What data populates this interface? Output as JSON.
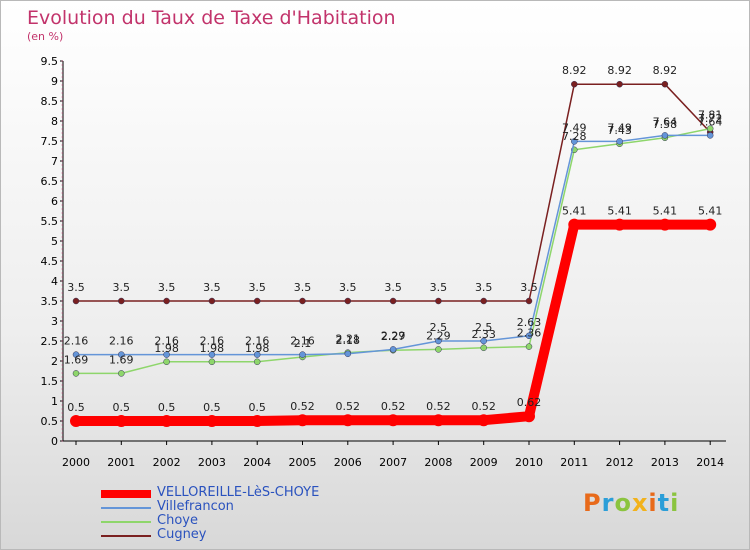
{
  "title": "Evolution du Taux de Taxe d'Habitation",
  "subtitle": "(en %)",
  "logo": {
    "text": "Proxiti",
    "colors": [
      "#e86a1a",
      "#2b9ed8",
      "#8bc43f",
      "#f2b21c"
    ]
  },
  "chart_data": {
    "type": "line",
    "title": "Evolution du Taux de Taxe d'Habitation",
    "ylabel": "(en %)",
    "x": [
      "2000",
      "2001",
      "2002",
      "2003",
      "2004",
      "2005",
      "2006",
      "2007",
      "2008",
      "2009",
      "2010",
      "2011",
      "2012",
      "2013",
      "2014"
    ],
    "y_ticks": [
      "0",
      "0.5",
      "1",
      "1.5",
      "2",
      "2.5",
      "3",
      "3.5",
      "4",
      "4.5",
      "5",
      "5.5",
      "6",
      "6.5",
      "7",
      "7.5",
      "8",
      "8.5",
      "9",
      "9.5"
    ],
    "ylim": [
      0,
      9.5
    ],
    "grid": false,
    "legend_position": "bottom-left",
    "series": [
      {
        "name": "VELLOREILLE-LèS-CHOYE",
        "color": "#ff0000",
        "values": [
          0.5,
          0.5,
          0.5,
          0.5,
          0.5,
          0.52,
          0.52,
          0.52,
          0.52,
          0.52,
          0.62,
          5.41,
          5.41,
          5.41,
          5.41
        ],
        "labels": [
          "0.5",
          "0.5",
          "0.5",
          "0.5",
          "0.5",
          "0.52",
          "0.52",
          "0.52",
          "0.52",
          "0.52",
          "0.62",
          "5.41",
          "5.41",
          "5.41",
          "5.41"
        ]
      },
      {
        "name": "Villefrancon",
        "color": "#6495d8",
        "values": [
          2.16,
          2.16,
          2.16,
          2.16,
          2.16,
          2.16,
          2.18,
          2.29,
          2.5,
          2.5,
          2.63,
          7.49,
          7.49,
          7.64,
          7.64
        ],
        "labels": [
          "2.16",
          "2.16",
          "2.16",
          "2.16",
          "2.16",
          "2.16",
          "2.18",
          "2.29",
          "2.5",
          "2.5",
          "2.63",
          "7.49",
          "7.49",
          "7.64",
          "7.64"
        ]
      },
      {
        "name": "Choye",
        "color": "#8ed66b",
        "values": [
          1.69,
          1.69,
          1.98,
          1.98,
          1.98,
          2.1,
          2.21,
          2.27,
          2.29,
          2.33,
          2.36,
          7.28,
          7.43,
          7.58,
          7.81
        ],
        "labels": [
          "1.69",
          "1.69",
          "1.98",
          "1.98",
          "1.98",
          "2.1",
          "2.21",
          "2.27",
          "2.29",
          "2.33",
          "2.36",
          "7.28",
          "7.43",
          "7.58",
          "7.81"
        ]
      },
      {
        "name": "Cugney",
        "color": "#7a2020",
        "values": [
          3.5,
          3.5,
          3.5,
          3.5,
          3.5,
          3.5,
          3.5,
          3.5,
          3.5,
          3.5,
          3.5,
          8.92,
          8.92,
          8.92,
          7.72
        ],
        "labels": [
          "3.5",
          "3.5",
          "3.5",
          "3.5",
          "3.5",
          "3.5",
          "3.5",
          "3.5",
          "3.5",
          "3.5",
          "3.5",
          "8.92",
          "8.92",
          "8.92",
          "7.72"
        ]
      }
    ]
  }
}
